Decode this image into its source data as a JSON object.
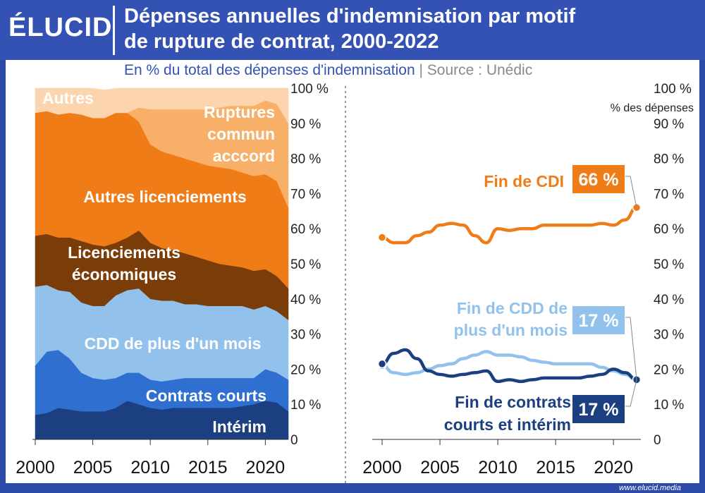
{
  "header": {
    "logo": "ÉLUCID",
    "title_line1": "Dépenses annuelles d'indemnisation par motif",
    "title_line2": "de rupture de contrat, 2000-2022",
    "subtitle": "En % du total des dépenses d'indemnisation",
    "separator": "|",
    "source": "Source : Unédic"
  },
  "footer": {
    "url": "www.elucid.media"
  },
  "colors": {
    "interim": "#1b3f80",
    "contrats_courts": "#2e6fd0",
    "cdd": "#92c1ec",
    "licenciements_eco": "#7a3d0a",
    "autres_licenciements": "#f07c17",
    "ruptures": "#f8b069",
    "autres": "#fcd4ad",
    "cdi_line": "#f07c17",
    "cdd_line": "#92c1ec",
    "courts_line": "#1b3f80"
  },
  "chart_data": [
    {
      "type": "area",
      "stacked": true,
      "x": [
        2000,
        2001,
        2002,
        2003,
        2004,
        2005,
        2006,
        2007,
        2008,
        2009,
        2010,
        2011,
        2012,
        2013,
        2014,
        2015,
        2016,
        2017,
        2018,
        2019,
        2020,
        2021,
        2022
      ],
      "series": [
        {
          "name": "Intérim",
          "label": "Intérim",
          "values": [
            7,
            7.5,
            9,
            8.5,
            8,
            8,
            8,
            9,
            11,
            10,
            9,
            8.5,
            9,
            9,
            9,
            9,
            9,
            9,
            9.5,
            10,
            11,
            10.5,
            8
          ]
        },
        {
          "name": "Contrats courts",
          "label": "Contrats courts",
          "values": [
            14,
            17.5,
            16.5,
            14.5,
            11,
            9.5,
            9,
            8.5,
            8,
            9,
            8,
            8,
            8,
            8.5,
            8.5,
            8.5,
            8.5,
            8.5,
            8,
            7.5,
            9,
            8.5,
            9
          ]
        },
        {
          "name": "CDD de plus d'un mois",
          "label": "CDD de plus d'un mois",
          "values": [
            22.5,
            19,
            17,
            19,
            20,
            20.5,
            21,
            23.5,
            23.5,
            24,
            23,
            23,
            22.5,
            21,
            21,
            20.5,
            20.5,
            20.5,
            20.5,
            19.5,
            18,
            17.5,
            17
          ]
        },
        {
          "name": "Licenciements économiques",
          "label_line1": "Licenciements",
          "label_line2": "économiques",
          "values": [
            14.5,
            14.5,
            15,
            15.5,
            17.5,
            17.5,
            17,
            15,
            15,
            16.5,
            16,
            15,
            14.5,
            14.5,
            13.5,
            13,
            12,
            11.5,
            11,
            11,
            10.5,
            10,
            9
          ]
        },
        {
          "name": "Autres licenciements",
          "label": "Autres licenciements",
          "values": [
            35,
            35,
            35,
            35.5,
            36,
            36,
            36.5,
            37,
            35.5,
            31,
            28,
            27.5,
            27,
            27,
            27,
            27,
            27.5,
            27.5,
            27,
            27,
            27,
            27,
            23
          ]
        },
        {
          "name": "Ruptures commun acccord",
          "label_line1": "Ruptures",
          "label_line2": "commun",
          "label_line3": "acccord",
          "values": [
            0,
            0,
            0,
            0,
            0,
            0,
            0,
            0,
            0,
            4,
            10,
            12,
            13,
            14,
            15,
            16,
            17,
            18,
            19,
            20,
            21,
            22,
            24
          ]
        },
        {
          "name": "Autres",
          "label": "Autres",
          "values": [
            7,
            6.5,
            7.5,
            7,
            7.5,
            8.5,
            8,
            7,
            7,
            5.5,
            6,
            6,
            6,
            6,
            6,
            6,
            5.5,
            5,
            5,
            5,
            3.5,
            4.5,
            10
          ]
        }
      ],
      "ylim": [
        0,
        100
      ],
      "yticks": [
        "0",
        "10 %",
        "20 %",
        "30 %",
        "40 %",
        "50 %",
        "60 %",
        "70 %",
        "80 %",
        "90 %",
        "100 %"
      ],
      "xticks": [
        "2000",
        "2005",
        "2010",
        "2015",
        "2020"
      ]
    },
    {
      "type": "line",
      "ylabel": "% des dépenses",
      "x": [
        2000,
        2001,
        2002,
        2003,
        2004,
        2005,
        2006,
        2007,
        2008,
        2009,
        2010,
        2011,
        2012,
        2013,
        2014,
        2015,
        2016,
        2017,
        2018,
        2019,
        2020,
        2021,
        2022
      ],
      "series": [
        {
          "name": "Fin de CDI",
          "label": "Fin de CDI",
          "end_value": "66 %",
          "values": [
            57.5,
            56,
            56,
            58,
            59,
            61,
            61.5,
            61,
            58,
            56,
            60,
            59.5,
            60,
            60,
            61,
            61,
            61,
            61,
            61,
            61.5,
            61,
            62.5,
            66
          ]
        },
        {
          "name": "Fin de CDD de plus d'un mois",
          "label_line1": "Fin de CDD de",
          "label_line2": "plus d'un mois",
          "end_value": "17 %",
          "values": [
            21,
            19,
            18.5,
            19,
            20,
            21,
            21.5,
            23,
            24,
            25,
            24,
            24,
            23.5,
            22.5,
            22,
            21.5,
            21.5,
            21.5,
            21.5,
            20.5,
            19.5,
            18.5,
            17
          ]
        },
        {
          "name": "Fin de contrats courts et intérim",
          "label_line1": "Fin de contrats",
          "label_line2": "courts et intérim",
          "end_value": "17 %",
          "values": [
            21.5,
            24.5,
            25.5,
            23,
            19.5,
            18.5,
            18,
            18.5,
            19,
            19.5,
            16.5,
            17,
            16.5,
            17,
            17.5,
            17.5,
            17.5,
            17.5,
            18,
            18.5,
            20,
            19,
            17
          ]
        }
      ],
      "ylim": [
        0,
        100
      ],
      "yticks": [
        "0",
        "10 %",
        "20 %",
        "30 %",
        "40 %",
        "50 %",
        "60 %",
        "70 %",
        "80 %",
        "90 %",
        "100 %"
      ],
      "xticks": [
        "2000",
        "2005",
        "2010",
        "2015",
        "2020"
      ]
    }
  ]
}
